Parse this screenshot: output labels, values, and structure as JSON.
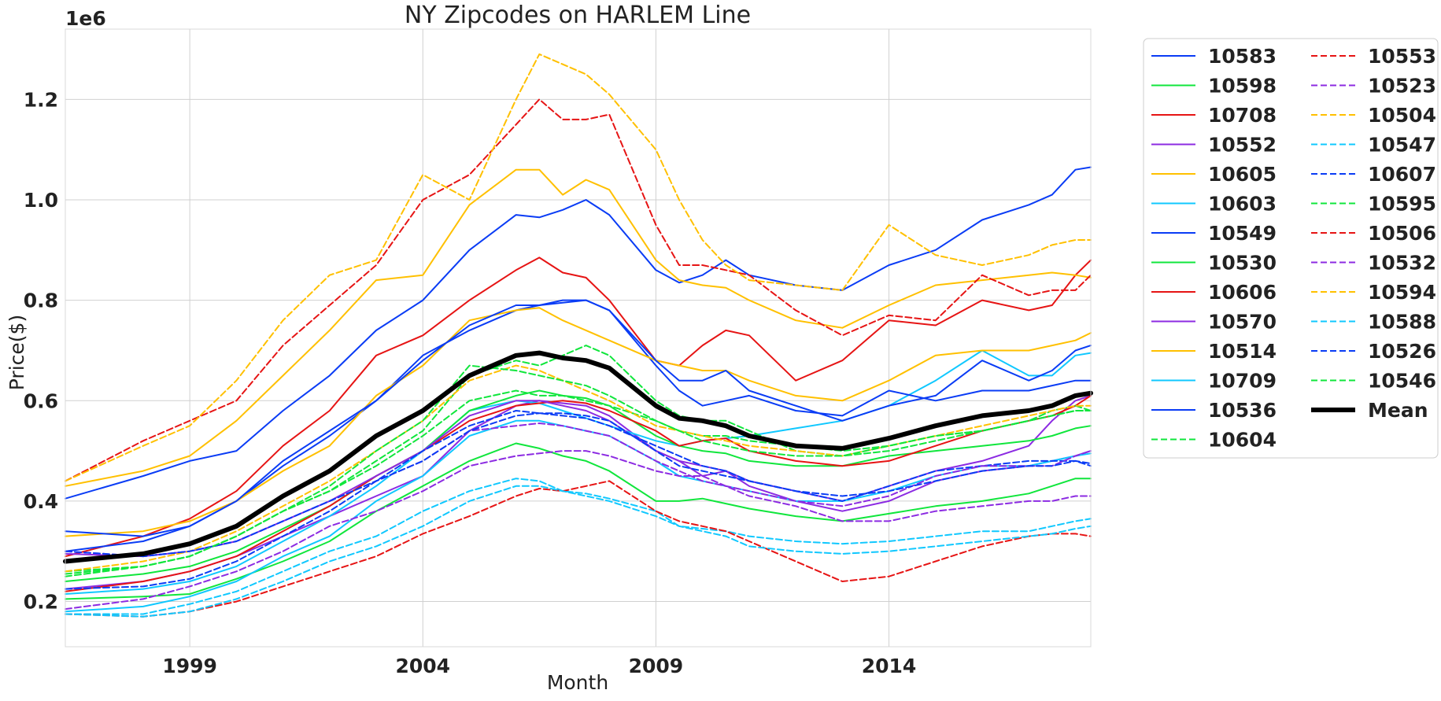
{
  "chart_data": {
    "type": "line",
    "title": "NY Zipcodes on HARLEM Line",
    "xlabel": "Month",
    "ylabel": "Price($)",
    "y_scale_label": "1e6",
    "xlim": [
      1996.33,
      2018.33
    ],
    "ylim": [
      110000,
      1340000
    ],
    "x_ticks": [
      1999,
      2004,
      2009,
      2014
    ],
    "y_ticks": [
      200000,
      400000,
      600000,
      800000,
      1000000,
      1200000
    ],
    "y_tick_labels": [
      "0.2",
      "0.4",
      "0.6",
      "0.8",
      "1.0",
      "1.2"
    ],
    "grid": true,
    "legend_placement": "outside-top-right",
    "x": [
      1996.33,
      1998,
      1999,
      2000,
      2001,
      2002,
      2003,
      2004,
      2005,
      2006,
      2006.5,
      2007,
      2007.5,
      2008,
      2009,
      2009.5,
      2010,
      2010.5,
      2011,
      2012,
      2013,
      2014,
      2015,
      2016,
      2017,
      2017.5,
      2018,
      2018.33
    ],
    "series": [
      {
        "name": "10583",
        "color": "#0a3cf5",
        "dash": false,
        "values": [
          405000,
          450000,
          480000,
          500000,
          580000,
          650000,
          740000,
          800000,
          900000,
          970000,
          965000,
          980000,
          1000000,
          970000,
          860000,
          835000,
          850000,
          880000,
          850000,
          830000,
          820000,
          870000,
          900000,
          960000,
          990000,
          1010000,
          1060000,
          1065000
        ]
      },
      {
        "name": "10598",
        "color": "#10e63c",
        "dash": false,
        "values": [
          205000,
          210000,
          215000,
          245000,
          280000,
          320000,
          380000,
          430000,
          480000,
          515000,
          505000,
          490000,
          480000,
          460000,
          400000,
          400000,
          405000,
          395000,
          385000,
          370000,
          360000,
          375000,
          390000,
          400000,
          415000,
          430000,
          445000,
          445000
        ]
      },
      {
        "name": "10708",
        "color": "#e61414",
        "dash": false,
        "values": [
          290000,
          330000,
          365000,
          420000,
          510000,
          580000,
          690000,
          730000,
          800000,
          860000,
          885000,
          855000,
          845000,
          800000,
          680000,
          670000,
          710000,
          740000,
          730000,
          640000,
          680000,
          760000,
          750000,
          800000,
          780000,
          790000,
          850000,
          880000
        ]
      },
      {
        "name": "10552",
        "color": "#8c2be2",
        "dash": false,
        "values": [
          225000,
          240000,
          260000,
          290000,
          330000,
          370000,
          410000,
          450000,
          540000,
          590000,
          600000,
          595000,
          590000,
          570000,
          500000,
          480000,
          450000,
          460000,
          440000,
          420000,
          400000,
          430000,
          460000,
          480000,
          510000,
          560000,
          600000,
          610000
        ]
      },
      {
        "name": "10605",
        "color": "#ffc000",
        "dash": false,
        "values": [
          430000,
          460000,
          490000,
          560000,
          650000,
          740000,
          840000,
          850000,
          990000,
          1060000,
          1060000,
          1010000,
          1040000,
          1020000,
          880000,
          840000,
          830000,
          825000,
          800000,
          760000,
          745000,
          790000,
          830000,
          840000,
          850000,
          855000,
          850000,
          845000
        ]
      },
      {
        "name": "10603",
        "color": "#10c8ff",
        "dash": false,
        "values": [
          215000,
          225000,
          240000,
          270000,
          320000,
          370000,
          430000,
          500000,
          580000,
          600000,
          595000,
          580000,
          565000,
          550000,
          520000,
          510000,
          520000,
          525000,
          530000,
          545000,
          560000,
          590000,
          640000,
          700000,
          650000,
          650000,
          690000,
          695000
        ]
      },
      {
        "name": "10549",
        "color": "#0a3cf5",
        "dash": false,
        "values": [
          300000,
          320000,
          350000,
          400000,
          470000,
          530000,
          600000,
          690000,
          740000,
          780000,
          790000,
          795000,
          800000,
          780000,
          670000,
          620000,
          590000,
          600000,
          610000,
          580000,
          570000,
          620000,
          600000,
          620000,
          620000,
          630000,
          640000,
          640000
        ]
      },
      {
        "name": "10530",
        "color": "#10e63c",
        "dash": false,
        "values": [
          240000,
          255000,
          270000,
          300000,
          345000,
          390000,
          450000,
          500000,
          580000,
          610000,
          620000,
          610000,
          605000,
          590000,
          530000,
          510000,
          500000,
          495000,
          480000,
          470000,
          470000,
          490000,
          500000,
          510000,
          520000,
          530000,
          545000,
          550000
        ]
      },
      {
        "name": "10606",
        "color": "#e61414",
        "dash": false,
        "values": [
          220000,
          240000,
          260000,
          290000,
          340000,
          390000,
          450000,
          500000,
          560000,
          590000,
          595000,
          600000,
          595000,
          580000,
          540000,
          510000,
          520000,
          525000,
          500000,
          480000,
          470000,
          480000,
          510000,
          540000,
          560000,
          570000,
          590000,
          610000
        ]
      },
      {
        "name": "10570",
        "color": "#8c2be2",
        "dash": false,
        "values": [
          295000,
          290000,
          300000,
          320000,
          360000,
          400000,
          450000,
          500000,
          570000,
          600000,
          600000,
          590000,
          580000,
          560000,
          500000,
          480000,
          470000,
          460000,
          430000,
          400000,
          380000,
          400000,
          440000,
          460000,
          470000,
          480000,
          490000,
          500000
        ]
      },
      {
        "name": "10514",
        "color": "#ffc000",
        "dash": false,
        "values": [
          330000,
          340000,
          360000,
          400000,
          460000,
          510000,
          610000,
          670000,
          760000,
          780000,
          785000,
          760000,
          740000,
          720000,
          680000,
          670000,
          660000,
          660000,
          640000,
          610000,
          600000,
          640000,
          690000,
          700000,
          700000,
          710000,
          720000,
          735000
        ]
      },
      {
        "name": "10709",
        "color": "#10c8ff",
        "dash": false,
        "values": [
          180000,
          190000,
          210000,
          240000,
          290000,
          330000,
          400000,
          450000,
          530000,
          560000,
          560000,
          550000,
          540000,
          530000,
          480000,
          450000,
          440000,
          430000,
          420000,
          400000,
          400000,
          420000,
          450000,
          470000,
          470000,
          480000,
          490000,
          495000
        ]
      },
      {
        "name": "10536",
        "color": "#0a3cf5",
        "dash": false,
        "values": [
          340000,
          330000,
          350000,
          400000,
          480000,
          540000,
          600000,
          680000,
          750000,
          790000,
          790000,
          800000,
          800000,
          780000,
          680000,
          640000,
          640000,
          660000,
          620000,
          590000,
          560000,
          590000,
          610000,
          680000,
          640000,
          660000,
          700000,
          710000
        ]
      },
      {
        "name": "10604",
        "color": "#10e63c",
        "dash": true,
        "values": [
          260000,
          270000,
          290000,
          330000,
          380000,
          420000,
          480000,
          540000,
          650000,
          680000,
          670000,
          690000,
          710000,
          690000,
          600000,
          570000,
          560000,
          560000,
          540000,
          500000,
          490000,
          500000,
          520000,
          540000,
          560000,
          580000,
          590000,
          580000
        ]
      },
      {
        "name": "10553",
        "color": "#e61414",
        "dash": true,
        "values": [
          440000,
          520000,
          560000,
          600000,
          710000,
          790000,
          870000,
          1000000,
          1050000,
          1150000,
          1200000,
          1160000,
          1160000,
          1170000,
          950000,
          870000,
          870000,
          860000,
          850000,
          780000,
          730000,
          770000,
          760000,
          850000,
          810000,
          820000,
          820000,
          850000
        ]
      },
      {
        "name": "10523",
        "color": "#8c2be2",
        "dash": true,
        "values": [
          185000,
          205000,
          230000,
          260000,
          300000,
          350000,
          380000,
          420000,
          470000,
          490000,
          495000,
          500000,
          500000,
          490000,
          460000,
          450000,
          450000,
          430000,
          410000,
          390000,
          360000,
          360000,
          380000,
          390000,
          400000,
          400000,
          410000,
          410000
        ]
      },
      {
        "name": "10504",
        "color": "#ffc000",
        "dash": true,
        "values": [
          440000,
          510000,
          550000,
          640000,
          760000,
          850000,
          880000,
          1050000,
          1000000,
          1200000,
          1290000,
          1270000,
          1250000,
          1210000,
          1100000,
          1000000,
          920000,
          870000,
          840000,
          830000,
          820000,
          950000,
          890000,
          870000,
          890000,
          910000,
          920000,
          920000
        ]
      },
      {
        "name": "10547",
        "color": "#10c8ff",
        "dash": true,
        "values": [
          175000,
          175000,
          195000,
          220000,
          260000,
          300000,
          330000,
          380000,
          420000,
          445000,
          440000,
          420000,
          415000,
          405000,
          380000,
          350000,
          345000,
          340000,
          330000,
          320000,
          315000,
          320000,
          330000,
          340000,
          340000,
          350000,
          360000,
          365000
        ]
      },
      {
        "name": "10607",
        "color": "#0a3cf5",
        "dash": true,
        "values": [
          225000,
          230000,
          245000,
          280000,
          330000,
          380000,
          440000,
          500000,
          550000,
          580000,
          575000,
          570000,
          565000,
          550000,
          510000,
          490000,
          470000,
          460000,
          440000,
          420000,
          400000,
          430000,
          460000,
          470000,
          480000,
          480000,
          480000,
          470000
        ]
      },
      {
        "name": "10595",
        "color": "#10e63c",
        "dash": true,
        "values": [
          250000,
          270000,
          290000,
          330000,
          380000,
          420000,
          470000,
          530000,
          600000,
          620000,
          610000,
          610000,
          600000,
          590000,
          560000,
          540000,
          530000,
          530000,
          520000,
          510000,
          500000,
          510000,
          530000,
          540000,
          560000,
          570000,
          580000,
          580000
        ]
      },
      {
        "name": "10506",
        "color": "#e61414",
        "dash": true,
        "values": [
          175000,
          170000,
          180000,
          200000,
          230000,
          260000,
          290000,
          335000,
          370000,
          410000,
          425000,
          420000,
          430000,
          440000,
          380000,
          360000,
          350000,
          340000,
          320000,
          280000,
          240000,
          250000,
          280000,
          310000,
          330000,
          335000,
          335000,
          330000
        ]
      },
      {
        "name": "10532",
        "color": "#8c2be2",
        "dash": true,
        "values": [
          300000,
          290000,
          300000,
          320000,
          360000,
          400000,
          440000,
          480000,
          540000,
          550000,
          555000,
          550000,
          540000,
          530000,
          480000,
          460000,
          440000,
          430000,
          420000,
          400000,
          390000,
          410000,
          450000,
          470000,
          470000,
          470000,
          490000,
          500000
        ]
      },
      {
        "name": "10594",
        "color": "#ffc000",
        "dash": true,
        "values": [
          260000,
          280000,
          300000,
          340000,
          390000,
          440000,
          500000,
          560000,
          640000,
          670000,
          660000,
          640000,
          620000,
          600000,
          550000,
          540000,
          530000,
          520000,
          510000,
          500000,
          490000,
          510000,
          530000,
          550000,
          570000,
          580000,
          590000,
          590000
        ]
      },
      {
        "name": "10588",
        "color": "#10c8ff",
        "dash": true,
        "values": [
          175000,
          170000,
          180000,
          205000,
          240000,
          280000,
          310000,
          350000,
          400000,
          430000,
          430000,
          420000,
          410000,
          400000,
          370000,
          350000,
          340000,
          330000,
          310000,
          300000,
          295000,
          300000,
          310000,
          320000,
          330000,
          335000,
          345000,
          350000
        ]
      },
      {
        "name": "10526",
        "color": "#0a3cf5",
        "dash": true,
        "values": [
          300000,
          290000,
          300000,
          320000,
          360000,
          400000,
          440000,
          480000,
          540000,
          570000,
          575000,
          575000,
          570000,
          560000,
          500000,
          470000,
          460000,
          450000,
          440000,
          420000,
          410000,
          420000,
          440000,
          460000,
          470000,
          470000,
          480000,
          475000
        ]
      },
      {
        "name": "10546",
        "color": "#10e63c",
        "dash": true,
        "values": [
          255000,
          270000,
          290000,
          330000,
          380000,
          430000,
          500000,
          560000,
          670000,
          660000,
          650000,
          640000,
          630000,
          610000,
          560000,
          540000,
          520000,
          510000,
          500000,
          490000,
          490000,
          510000,
          530000,
          540000,
          560000,
          570000,
          580000,
          580000
        ]
      },
      {
        "name": "Mean",
        "color": "#000000",
        "dash": false,
        "bold": true,
        "values": [
          280000,
          295000,
          315000,
          350000,
          410000,
          460000,
          530000,
          580000,
          650000,
          690000,
          695000,
          685000,
          680000,
          665000,
          590000,
          565000,
          560000,
          550000,
          530000,
          510000,
          505000,
          525000,
          550000,
          570000,
          580000,
          590000,
          610000,
          615000
        ]
      }
    ]
  }
}
